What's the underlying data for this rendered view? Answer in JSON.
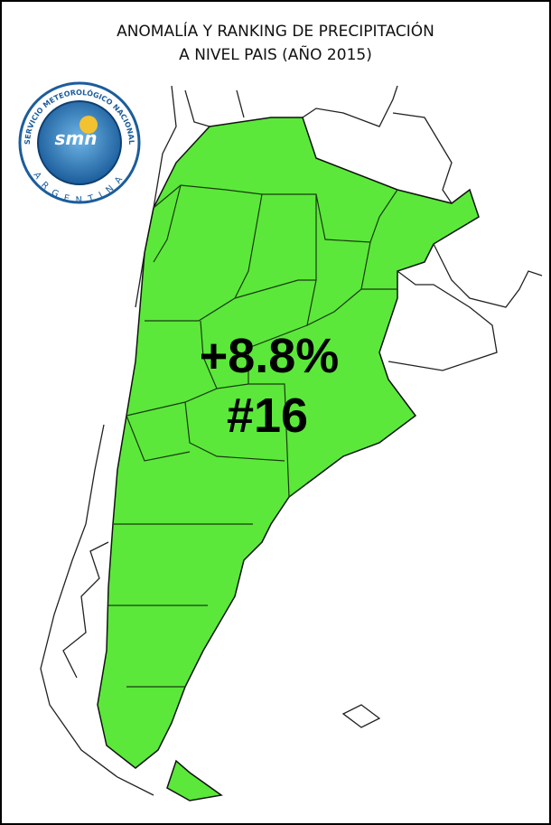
{
  "title": {
    "line1": "ANOMALÍA Y RANKING DE PRECIPITACIÓN",
    "line2": "A NIVEL PAIS (AÑO 2015)"
  },
  "logo": {
    "ring_text": "SERVICIO METEOROLÓGICO NACIONAL",
    "country": "ARGENTINA",
    "acronym": "smn"
  },
  "map": {
    "anomaly": "+8.8%",
    "ranking": "#16"
  }
}
